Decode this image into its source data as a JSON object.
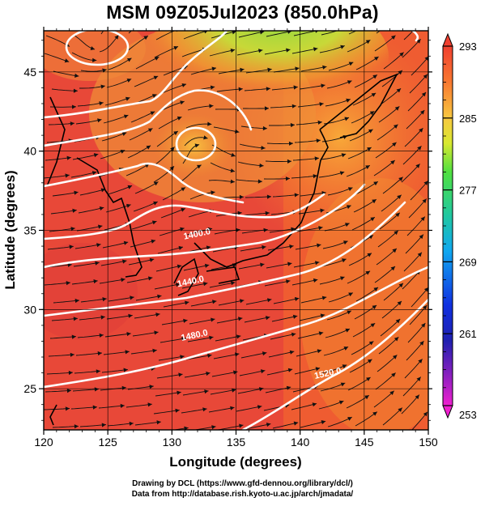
{
  "title": "MSM 09Z05Jul2023 (850.0hPa)",
  "chart_data": {
    "type": "map",
    "xlabel": "Longitude (degrees)",
    "ylabel": "Latitude  (degrees)",
    "xlim": [
      120,
      150
    ],
    "ylim": [
      22.4,
      47.6
    ],
    "xticks": [
      "120",
      "125",
      "130",
      "135",
      "140",
      "145",
      "150"
    ],
    "yticks": [
      {
        "value": 25,
        "label": "25"
      },
      {
        "value": 30,
        "label": "30"
      },
      {
        "value": 35,
        "label": "35"
      },
      {
        "value": 40,
        "label": "40"
      },
      {
        "value": 45,
        "label": "45"
      }
    ],
    "colorbar": {
      "min": 253,
      "max": 293,
      "labels": [
        "293",
        "285",
        "277",
        "269",
        "261",
        "253"
      ]
    },
    "contour_labels": [
      {
        "text": "1400.0",
        "lon": 132.0,
        "lat": 34.6
      },
      {
        "text": "1440.0",
        "lon": 131.5,
        "lat": 31.6
      },
      {
        "text": "1480.0",
        "lon": 131.8,
        "lat": 28.2
      },
      {
        "text": "1520.0",
        "lon": 142.2,
        "lat": 25.8
      }
    ]
  },
  "credits": {
    "line1": "Drawing by DCL (https://www.gfd-dennou.org/library/dcl/)",
    "line2": "Data from http://database.rish.kyoto-u.ac.jp/arch/jmadata/"
  }
}
